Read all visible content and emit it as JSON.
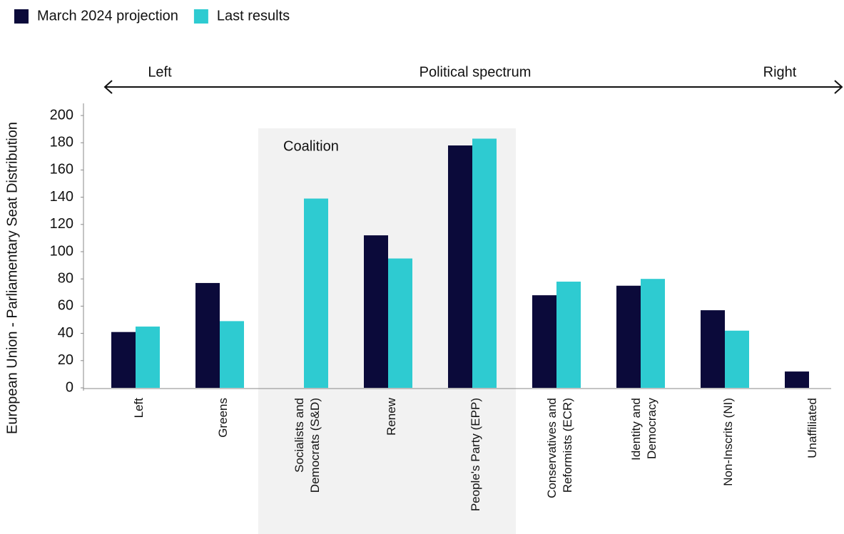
{
  "chart_data": {
    "type": "bar",
    "ylabel": "European Union - Parliamentary Seat Distribution",
    "spectrum": {
      "title": "Political spectrum",
      "left": "Left",
      "right": "Right"
    },
    "annotation": "Coalition",
    "categories": [
      "Left",
      "Greens",
      "Socialists and\nDemocrats (S&D)",
      "Renew",
      "People's Party (EPP)",
      "Conservatives and\nReformists (ECR)",
      "Identity and\nDemocracy",
      "Non-Inscrits (NI)",
      "Unaffiliated"
    ],
    "series": [
      {
        "name": "March 2024 projection",
        "color": "#0b0a3a",
        "values": [
          41,
          77,
          null,
          112,
          178,
          68,
          75,
          57,
          12
        ]
      },
      {
        "name": "Last results",
        "color": "#2ecbd1",
        "values": [
          45,
          49,
          139,
          95,
          183,
          78,
          80,
          42,
          null
        ]
      }
    ],
    "ylim": [
      0,
      200
    ],
    "yticks": [
      0,
      20,
      40,
      60,
      80,
      100,
      120,
      140,
      160,
      180,
      200
    ],
    "legend": "top-left"
  }
}
